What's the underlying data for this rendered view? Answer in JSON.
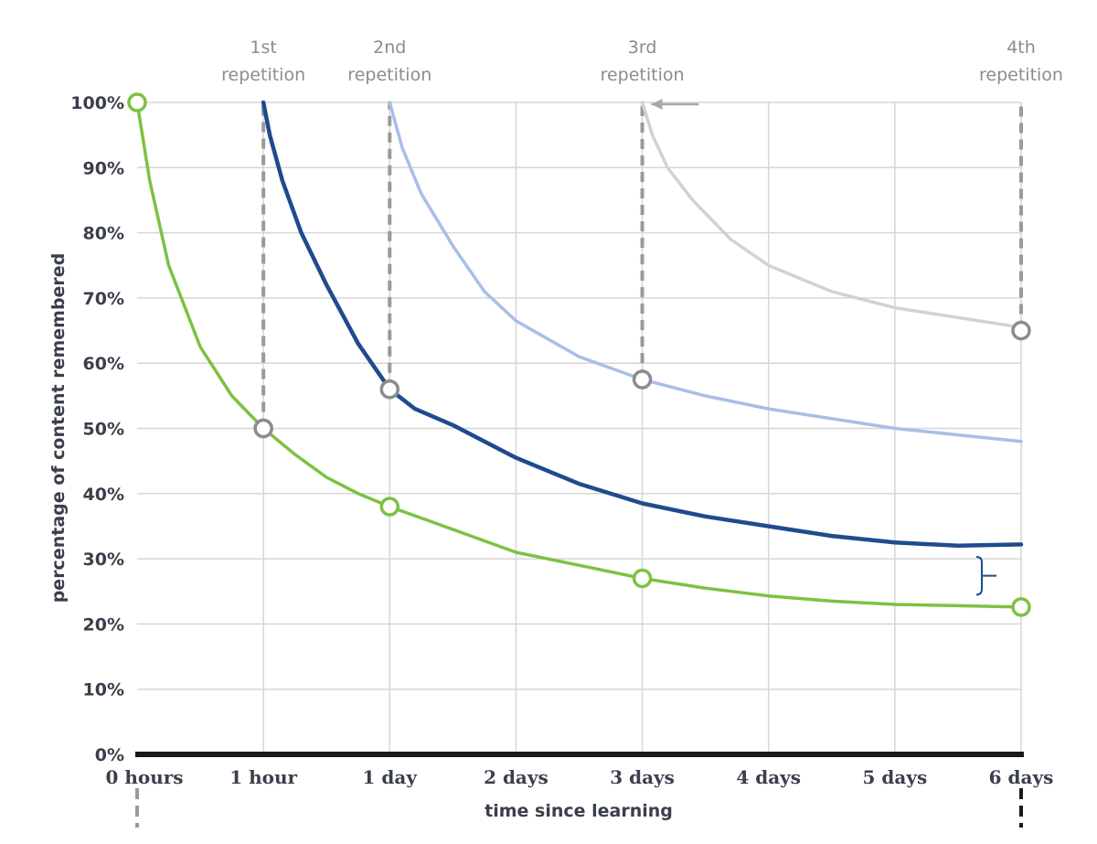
{
  "chart_data": {
    "type": "line",
    "title": "",
    "xlabel": "time since learning",
    "ylabel": "percentage of content remembered",
    "x_ticks": [
      "0 hours",
      "1 hour",
      "1 day",
      "2 days",
      "3 days",
      "4 days",
      "5 days",
      "6 days"
    ],
    "y_ticks": [
      "0%",
      "10%",
      "20%",
      "30%",
      "40%",
      "50%",
      "60%",
      "70%",
      "80%",
      "90%",
      "100%"
    ],
    "ylim": [
      0,
      100
    ],
    "grid": true,
    "repetitions": [
      {
        "line1": "1st",
        "line2": "repetition",
        "at": "1 hour",
        "from": 50,
        "to": 100
      },
      {
        "line1": "2nd",
        "line2": "repetition",
        "at": "1 day",
        "from": 56,
        "to": 100
      },
      {
        "line1": "3rd",
        "line2": "repetition",
        "at": "3 days",
        "from": 57.5,
        "to": 100
      },
      {
        "line1": "4th",
        "line2": "repetition",
        "at": "6 days",
        "from": 65,
        "to": 100
      }
    ],
    "series": [
      {
        "color": "#7cc242",
        "width": 3.5,
        "points": [
          [
            0,
            100
          ],
          [
            0.1,
            88
          ],
          [
            0.25,
            75
          ],
          [
            0.5,
            62.5
          ],
          [
            0.75,
            55
          ],
          [
            1,
            50
          ],
          [
            1.25,
            46
          ],
          [
            1.5,
            42.5
          ],
          [
            1.75,
            40
          ],
          [
            2,
            38
          ],
          [
            2.5,
            34.5
          ],
          [
            3,
            31
          ],
          [
            3.5,
            29
          ],
          [
            4,
            27
          ],
          [
            4.5,
            25.5
          ],
          [
            5,
            24.3
          ],
          [
            5.5,
            23.5
          ],
          [
            6,
            23
          ],
          [
            6.5,
            22.8
          ],
          [
            7,
            22.6
          ]
        ],
        "markers": [
          [
            0,
            100
          ],
          [
            1,
            50
          ],
          [
            2,
            38
          ],
          [
            4,
            27
          ],
          [
            7,
            22.6
          ]
        ]
      },
      {
        "color": "#1f4b8e",
        "width": 4.5,
        "points": [
          [
            1,
            100
          ],
          [
            1.05,
            95
          ],
          [
            1.15,
            88
          ],
          [
            1.3,
            80
          ],
          [
            1.5,
            72
          ],
          [
            1.75,
            63
          ],
          [
            2,
            56
          ],
          [
            2.2,
            53
          ],
          [
            2.5,
            50.5
          ],
          [
            3,
            45.5
          ],
          [
            3.5,
            41.5
          ],
          [
            4,
            38.5
          ],
          [
            4.5,
            36.5
          ],
          [
            5,
            35
          ],
          [
            5.5,
            33.5
          ],
          [
            6,
            32.5
          ],
          [
            6.5,
            32
          ],
          [
            7,
            32.2
          ]
        ],
        "markers": []
      },
      {
        "color": "#a7bfe8",
        "width": 3.5,
        "points": [
          [
            2,
            100
          ],
          [
            2.1,
            93
          ],
          [
            2.25,
            86
          ],
          [
            2.5,
            78
          ],
          [
            2.75,
            71
          ],
          [
            3,
            66.5
          ],
          [
            3.5,
            61
          ],
          [
            4,
            57.5
          ],
          [
            4.5,
            55
          ],
          [
            5,
            53
          ],
          [
            5.5,
            51.5
          ],
          [
            6,
            50
          ],
          [
            6.5,
            49
          ],
          [
            7,
            48
          ]
        ],
        "markers": [
          [
            2,
            56
          ]
        ]
      },
      {
        "color": "#d2d2d2",
        "width": 3.5,
        "points": [
          [
            4,
            100
          ],
          [
            4.08,
            95
          ],
          [
            4.2,
            90
          ],
          [
            4.4,
            85
          ],
          [
            4.7,
            79
          ],
          [
            5,
            75
          ],
          [
            5.5,
            71
          ],
          [
            6,
            68.5
          ],
          [
            6.5,
            67
          ],
          [
            7,
            65.5
          ]
        ],
        "markers": [
          [
            4,
            57.5
          ],
          [
            7,
            65
          ]
        ]
      }
    ],
    "colors": {
      "grid": "#d6d6d6",
      "axis": "#1a1a1a",
      "repetition_line": "#9a9a9a",
      "marker_gray": "#8c8c8c",
      "marker_green": "#7cc242",
      "bracket": "#1f4b8e"
    }
  }
}
